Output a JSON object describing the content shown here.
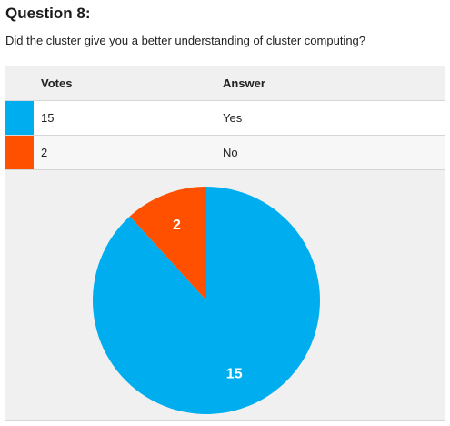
{
  "question": {
    "title": "Question 8:",
    "text": "Did the cluster give you a better understanding of cluster computing?"
  },
  "table": {
    "headers": {
      "votes": "Votes",
      "answer": "Answer"
    },
    "rows": [
      {
        "votes": "15",
        "answer": "Yes",
        "color": "#00aeef"
      },
      {
        "votes": "2",
        "answer": "No",
        "color": "#ff5000"
      }
    ]
  },
  "chart_data": {
    "type": "pie",
    "categories": [
      "Yes",
      "No"
    ],
    "values": [
      15,
      2
    ],
    "colors": [
      "#00aeef",
      "#ff5000"
    ],
    "labels": [
      "15",
      "2"
    ],
    "start_angle_deg": 0,
    "direction": "clockwise"
  }
}
